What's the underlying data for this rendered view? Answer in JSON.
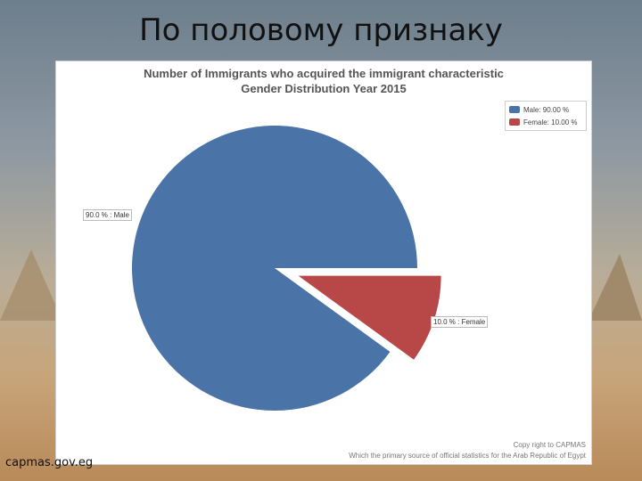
{
  "slide": {
    "title": "По половому признаку",
    "source": "capmas.gov.eg"
  },
  "chart_data": {
    "type": "pie",
    "title": "Number of Immigrants who acquired the immigrant characteristic",
    "subtitle": "Gender Distribution Year 2015",
    "slices": [
      {
        "name": "Male",
        "value": 90.0,
        "color": "#4a73a8",
        "legend": "Male: 90.00 %",
        "label": "90.0 % : Male"
      },
      {
        "name": "Female",
        "value": 10.0,
        "color": "#b84848",
        "legend": "Female: 10.00 %",
        "label": "10.0 % : Female"
      }
    ],
    "legend_position": "top-right",
    "footer": [
      "Copy right to CAPMAS",
      "Which the primary source of official statistics for the Arab Republic of Egypt"
    ]
  }
}
